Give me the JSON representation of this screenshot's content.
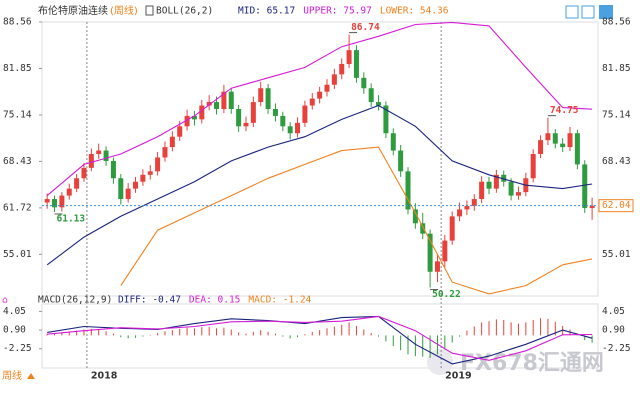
{
  "chart_data": {
    "type": "candlestick",
    "title": "布伦特原油连续",
    "period": "(周线)",
    "indicator": "BOLL(26,2)",
    "legend": [
      {
        "label": "MID: 65.17",
        "color": "#1a237e"
      },
      {
        "label": "UPPER: 75.97",
        "color": "#d61ad6"
      },
      {
        "label": "LOWER: 54.36",
        "color": "#f0821e"
      }
    ],
    "up_color": "#e8413b",
    "down_color": "#2e9b3f",
    "ylim": [
      49.0,
      88.56
    ],
    "yticks": [
      88.56,
      81.85,
      75.14,
      68.43,
      61.72,
      55.01
    ],
    "xlim": [
      -0.7,
      74.8
    ],
    "xticks": [
      {
        "value": 5.4,
        "label": "2018"
      },
      {
        "value": 53.5,
        "label": "2019"
      }
    ],
    "candles": [
      [
        62.5,
        63.8,
        61.6,
        63.0
      ],
      [
        63.0,
        63.5,
        61.13,
        61.8
      ],
      [
        61.8,
        64.0,
        61.2,
        63.5
      ],
      [
        63.5,
        65.2,
        62.9,
        64.5
      ],
      [
        64.5,
        66.6,
        64.0,
        66.0
      ],
      [
        66.0,
        68.2,
        65.5,
        67.5
      ],
      [
        67.5,
        70.3,
        67.0,
        69.5
      ],
      [
        69.5,
        71.0,
        68.8,
        70.0
      ],
      [
        70.0,
        70.6,
        67.8,
        68.5
      ],
      [
        68.5,
        69.0,
        65.2,
        66.0
      ],
      [
        66.0,
        66.6,
        62.2,
        63.0
      ],
      [
        63.0,
        65.3,
        62.5,
        64.5
      ],
      [
        64.5,
        66.2,
        63.9,
        65.5
      ],
      [
        65.5,
        67.3,
        64.9,
        66.5
      ],
      [
        66.5,
        67.9,
        65.8,
        67.0
      ],
      [
        67.0,
        69.8,
        66.4,
        69.0
      ],
      [
        69.0,
        71.3,
        68.4,
        70.5
      ],
      [
        70.5,
        72.8,
        69.9,
        72.0
      ],
      [
        72.0,
        74.3,
        71.4,
        73.5
      ],
      [
        73.5,
        75.9,
        72.9,
        75.0
      ],
      [
        75.0,
        75.7,
        73.6,
        74.5
      ],
      [
        74.5,
        77.3,
        73.9,
        76.5
      ],
      [
        76.5,
        78.0,
        75.8,
        77.0
      ],
      [
        77.0,
        77.8,
        75.2,
        76.0
      ],
      [
        76.0,
        79.5,
        75.4,
        78.5
      ],
      [
        78.5,
        79.0,
        75.3,
        76.0
      ],
      [
        76.0,
        76.6,
        72.7,
        73.5
      ],
      [
        73.5,
        74.9,
        72.8,
        74.0
      ],
      [
        74.0,
        77.8,
        73.4,
        77.0
      ],
      [
        77.0,
        79.9,
        76.4,
        79.0
      ],
      [
        79.0,
        79.6,
        75.3,
        76.0
      ],
      [
        76.0,
        76.8,
        74.2,
        75.0
      ],
      [
        75.0,
        75.6,
        72.8,
        73.5
      ],
      [
        73.5,
        74.1,
        71.6,
        72.5
      ],
      [
        72.5,
        74.8,
        71.9,
        74.0
      ],
      [
        74.0,
        77.2,
        73.4,
        76.5
      ],
      [
        76.5,
        78.3,
        75.9,
        77.5
      ],
      [
        77.5,
        79.2,
        76.8,
        78.5
      ],
      [
        78.5,
        80.3,
        77.8,
        79.5
      ],
      [
        79.5,
        81.8,
        78.9,
        81.0
      ],
      [
        81.0,
        83.3,
        80.3,
        82.5
      ],
      [
        82.5,
        86.74,
        81.9,
        84.5
      ],
      [
        84.5,
        85.2,
        79.8,
        80.5
      ],
      [
        80.5,
        81.3,
        78.2,
        79.0
      ],
      [
        79.0,
        79.7,
        76.3,
        77.0
      ],
      [
        77.0,
        78.0,
        75.8,
        76.5
      ],
      [
        76.5,
        77.1,
        71.8,
        72.5
      ],
      [
        72.5,
        73.2,
        69.3,
        70.0
      ],
      [
        70.0,
        70.8,
        66.2,
        67.0
      ],
      [
        67.0,
        67.6,
        60.8,
        61.5
      ],
      [
        61.5,
        62.4,
        58.7,
        59.5
      ],
      [
        59.5,
        61.0,
        57.2,
        58.0
      ],
      [
        58.0,
        58.6,
        50.22,
        52.5
      ],
      [
        52.5,
        55.0,
        51.0,
        54.0
      ],
      [
        54.0,
        57.8,
        53.2,
        57.0
      ],
      [
        57.0,
        61.2,
        56.4,
        60.5
      ],
      [
        60.5,
        62.5,
        59.8,
        61.5
      ],
      [
        61.5,
        62.8,
        60.7,
        62.0
      ],
      [
        62.0,
        63.7,
        61.3,
        63.0
      ],
      [
        63.0,
        66.3,
        62.4,
        65.5
      ],
      [
        65.5,
        66.2,
        63.7,
        64.5
      ],
      [
        64.5,
        67.2,
        63.9,
        66.5
      ],
      [
        66.5,
        67.1,
        64.8,
        65.5
      ],
      [
        65.5,
        66.0,
        62.8,
        63.5
      ],
      [
        63.5,
        64.8,
        62.9,
        64.0
      ],
      [
        64.0,
        66.8,
        63.4,
        66.0
      ],
      [
        66.0,
        70.2,
        65.4,
        69.5
      ],
      [
        69.5,
        72.2,
        68.9,
        71.5
      ],
      [
        71.5,
        74.75,
        70.8,
        72.5
      ],
      [
        72.5,
        73.1,
        70.3,
        71.0
      ],
      [
        71.0,
        71.8,
        69.8,
        70.5
      ],
      [
        70.5,
        73.4,
        69.9,
        72.5
      ],
      [
        72.5,
        73.0,
        67.3,
        68.0
      ],
      [
        68.0,
        68.6,
        61.0,
        61.7
      ],
      [
        61.7,
        63.2,
        60.0,
        62.04
      ]
    ],
    "last_price_color": "#f0821e",
    "annotations": [
      {
        "label": "86.74",
        "candle": 41,
        "color": "#e8413b"
      },
      {
        "label": "61.13",
        "candle": 1,
        "color": "#2e9b3f"
      },
      {
        "label": "50.22",
        "candle": 52,
        "color": "#2e9b3f"
      },
      {
        "label": "74.75",
        "candle": 68,
        "color": "#e8413b"
      }
    ],
    "boll": {
      "x": [
        0,
        5,
        10,
        15,
        20,
        25,
        30,
        35,
        40,
        45,
        50,
        55,
        60,
        65,
        70,
        74
      ],
      "mid": [
        53.5,
        57.5,
        60.5,
        63,
        65.5,
        68.5,
        70.5,
        72,
        74.5,
        76.5,
        73.5,
        68.5,
        66.5,
        65,
        64.5,
        65.17
      ],
      "upper": [
        63.5,
        68,
        69.5,
        72,
        75,
        79,
        80.5,
        82,
        85,
        86.5,
        88.2,
        88.5,
        88,
        82,
        76.2,
        75.97
      ],
      "lower": [
        null,
        null,
        50.5,
        58.5,
        61,
        63.5,
        66,
        68,
        70,
        70.5,
        61,
        51,
        49.3,
        50.5,
        53.5,
        54.36
      ]
    },
    "macd": {
      "title": "MACD(26,12,9)",
      "legend": [
        {
          "label": "DIFF: -0.47",
          "color": "#1a237e"
        },
        {
          "label": "DEA: 0.15",
          "color": "#d61ad6"
        },
        {
          "label": "MACD: -1.24",
          "color": "#f0821e"
        }
      ],
      "ylim": [
        -5.5,
        5.3
      ],
      "yticks": [
        4.05,
        {
          "value": 0.9,
          "label": "0.90"
        },
        -2.25
      ],
      "hist": [
        0.3,
        0.4,
        0.5,
        0.6,
        0.8,
        1.0,
        1.1,
        1.0,
        0.7,
        0.3,
        -0.3,
        -0.5,
        -0.4,
        -0.2,
        0.1,
        0.4,
        0.7,
        0.9,
        1.1,
        1.3,
        1.2,
        1.4,
        1.4,
        1.2,
        1.3,
        1.0,
        0.5,
        0.3,
        0.6,
        0.9,
        0.6,
        0.3,
        -0.2,
        -0.5,
        -0.3,
        0.2,
        0.6,
        0.9,
        1.2,
        1.5,
        1.8,
        2.2,
        1.6,
        1.0,
        0.4,
        -0.2,
        -1.0,
        -1.8,
        -2.5,
        -3.2,
        -3.5,
        -3.6,
        -3.8,
        -3.2,
        -2.4,
        -1.2,
        -0.2,
        0.8,
        1.5,
        2.2,
        2.4,
        2.7,
        2.6,
        2.2,
        2.0,
        2.2,
        2.6,
        2.9,
        2.8,
        2.3,
        1.6,
        1.0,
        0.1,
        -0.8,
        -1.24
      ],
      "diff": [
        0.5,
        1.5,
        1.2,
        1.0,
        2.0,
        2.8,
        2.5,
        2.0,
        3.0,
        3.2,
        -1.5,
        -4.8,
        -3.5,
        -1.5,
        0.9,
        -0.47
      ],
      "dea": [
        0.2,
        0.8,
        1.3,
        1.1,
        1.5,
        2.3,
        2.4,
        2.2,
        2.4,
        3.2,
        0.8,
        -3.0,
        -4.2,
        -2.6,
        0.1,
        0.15
      ]
    },
    "footer": "周线",
    "watermark": "FX678汇通网"
  }
}
